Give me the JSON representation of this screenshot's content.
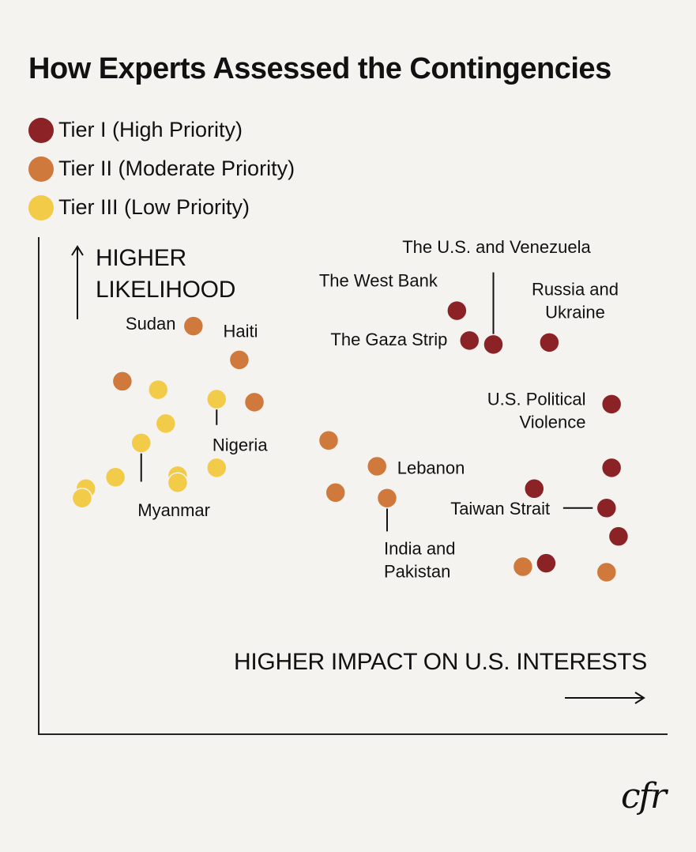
{
  "chart_data": {
    "type": "scatter",
    "title": "How Experts Assessed the Contingencies",
    "xlabel": "HIGHER IMPACT ON U.S. INTERESTS",
    "ylabel": [
      "HIGHER",
      "LIKELIHOOD"
    ],
    "xlim": [
      0,
      100
    ],
    "ylim": [
      0,
      100
    ],
    "grid": false,
    "legend_position": "top-left",
    "series": [
      {
        "name": "Tier I (High Priority)",
        "color": "#8b2226",
        "points": [
          {
            "x": 66.5,
            "y": 85.2,
            "label": ""
          },
          {
            "x": 68.5,
            "y": 79.2,
            "label": ""
          },
          {
            "x": 72.3,
            "y": 78.4,
            "label": ""
          },
          {
            "x": 81.2,
            "y": 78.8,
            "label": ""
          },
          {
            "x": 91.1,
            "y": 66.4,
            "label": ""
          },
          {
            "x": 91.1,
            "y": 53.6,
            "label": ""
          },
          {
            "x": 78.8,
            "y": 49.4,
            "label": ""
          },
          {
            "x": 90.3,
            "y": 45.5,
            "label": ""
          },
          {
            "x": 92.2,
            "y": 39.8,
            "label": ""
          },
          {
            "x": 80.7,
            "y": 34.4,
            "label": ""
          }
        ]
      },
      {
        "name": "Tier II (Moderate Priority)",
        "color": "#cf7a3c",
        "points": [
          {
            "x": 24.6,
            "y": 82.1,
            "label": ""
          },
          {
            "x": 31.9,
            "y": 75.3,
            "label": ""
          },
          {
            "x": 13.3,
            "y": 71.0,
            "label": ""
          },
          {
            "x": 34.3,
            "y": 66.8,
            "label": ""
          },
          {
            "x": 46.1,
            "y": 59.1,
            "label": ""
          },
          {
            "x": 53.8,
            "y": 53.9,
            "label": ""
          },
          {
            "x": 47.2,
            "y": 48.6,
            "label": ""
          },
          {
            "x": 55.4,
            "y": 47.5,
            "label": ""
          },
          {
            "x": 77.0,
            "y": 33.7,
            "label": ""
          },
          {
            "x": 90.3,
            "y": 32.6,
            "label": ""
          }
        ]
      },
      {
        "name": "Tier III (Low Priority)",
        "color": "#f2cc48",
        "points": [
          {
            "x": 19.0,
            "y": 69.3,
            "label": ""
          },
          {
            "x": 28.3,
            "y": 67.4,
            "label": ""
          },
          {
            "x": 20.2,
            "y": 62.5,
            "label": ""
          },
          {
            "x": 16.3,
            "y": 58.6,
            "label": ""
          },
          {
            "x": 28.3,
            "y": 53.6,
            "label": ""
          },
          {
            "x": 12.2,
            "y": 51.7,
            "label": ""
          },
          {
            "x": 22.1,
            "y": 52.0,
            "label": ""
          },
          {
            "x": 22.1,
            "y": 50.6,
            "label": ""
          },
          {
            "x": 7.5,
            "y": 49.4,
            "label": ""
          },
          {
            "x": 6.9,
            "y": 47.5,
            "label": ""
          }
        ]
      }
    ],
    "annotations": [
      {
        "text": [
          "The U.S. and Venezuela"
        ],
        "anchor": "middle",
        "tx": 72.8,
        "ty": 96.8,
        "line": [
          [
            72.3,
            92.9
          ],
          [
            72.3,
            78.4
          ]
        ]
      },
      {
        "text": [
          "The West Bank"
        ],
        "anchor": "middle",
        "tx": 54.0,
        "ty": 90.1,
        "line": null
      },
      {
        "text": [
          "Russia and",
          "Ukraine"
        ],
        "anchor": "middle",
        "tx": 85.3,
        "ty": 88.3,
        "line": null
      },
      {
        "text": [
          "Sudan"
        ],
        "anchor": "end",
        "tx": 21.8,
        "ty": 81.4,
        "line": null
      },
      {
        "text": [
          "The Gaza Strip"
        ],
        "anchor": "middle",
        "tx": 55.7,
        "ty": 78.2,
        "line": null
      },
      {
        "text": [
          "Haiti"
        ],
        "anchor": "middle",
        "tx": 32.1,
        "ty": 79.9,
        "line": null
      },
      {
        "text": [
          "U.S. Political",
          "Violence"
        ],
        "anchor": "end",
        "tx": 87.0,
        "ty": 66.2,
        "line": null
      },
      {
        "text": [
          "Nigeria"
        ],
        "anchor": "middle",
        "tx": 32.0,
        "ty": 57.0,
        "line": [
          [
            28.3,
            65.7
          ],
          [
            28.3,
            62.2
          ]
        ]
      },
      {
        "text": [
          "Lebanon"
        ],
        "anchor": "start",
        "tx": 57.0,
        "ty": 52.4,
        "line": null
      },
      {
        "text": [
          "Myanmar"
        ],
        "anchor": "middle",
        "tx": 21.5,
        "ty": 43.9,
        "line": [
          [
            16.3,
            56.5
          ],
          [
            16.3,
            50.8
          ]
        ]
      },
      {
        "text": [
          "Taiwan Strait"
        ],
        "anchor": "end",
        "tx": 81.3,
        "ty": 44.2,
        "line": [
          [
            83.4,
            45.5
          ],
          [
            88.1,
            45.5
          ]
        ]
      },
      {
        "text": [
          "India and",
          "Pakistan"
        ],
        "anchor": "start",
        "tx": 54.9,
        "ty": 36.2,
        "line": [
          [
            55.4,
            45.4
          ],
          [
            55.4,
            40.8
          ]
        ]
      }
    ]
  },
  "logo_text": "cfr"
}
